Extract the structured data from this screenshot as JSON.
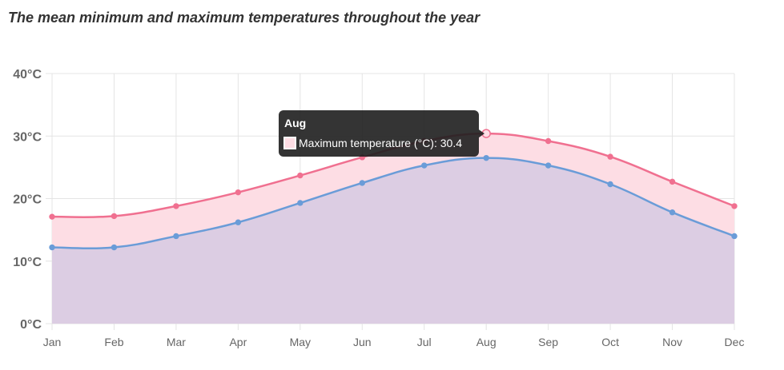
{
  "chart_data": {
    "type": "area",
    "title": "The mean minimum and maximum temperatures throughout the year",
    "categories": [
      "Jan",
      "Feb",
      "Mar",
      "Apr",
      "May",
      "Jun",
      "Jul",
      "Aug",
      "Sep",
      "Oct",
      "Nov",
      "Dec"
    ],
    "series": [
      {
        "name": "Maximum temperature (°C)",
        "values": [
          17.1,
          17.2,
          18.8,
          21.0,
          23.7,
          26.6,
          29.2,
          30.4,
          29.2,
          26.7,
          22.7,
          18.8
        ],
        "color": "#f07090",
        "fill": "#fddde4"
      },
      {
        "name": "",
        "values": [
          12.2,
          12.2,
          14.0,
          16.2,
          19.3,
          22.5,
          25.3,
          26.5,
          25.3,
          22.3,
          17.8,
          14.0
        ],
        "color": "#6a9cd8",
        "fill": "#dccde3"
      }
    ],
    "ylim": [
      0,
      40
    ],
    "yticks": [
      "0°C",
      "10°C",
      "20°C",
      "30°C",
      "40°C"
    ],
    "ytick_values": [
      0,
      10,
      20,
      30,
      40
    ],
    "grid": true,
    "tooltip": {
      "category": "Aug",
      "label": "Maximum temperature (°C): 30.4",
      "series_index": 0,
      "point_index": 7
    }
  }
}
